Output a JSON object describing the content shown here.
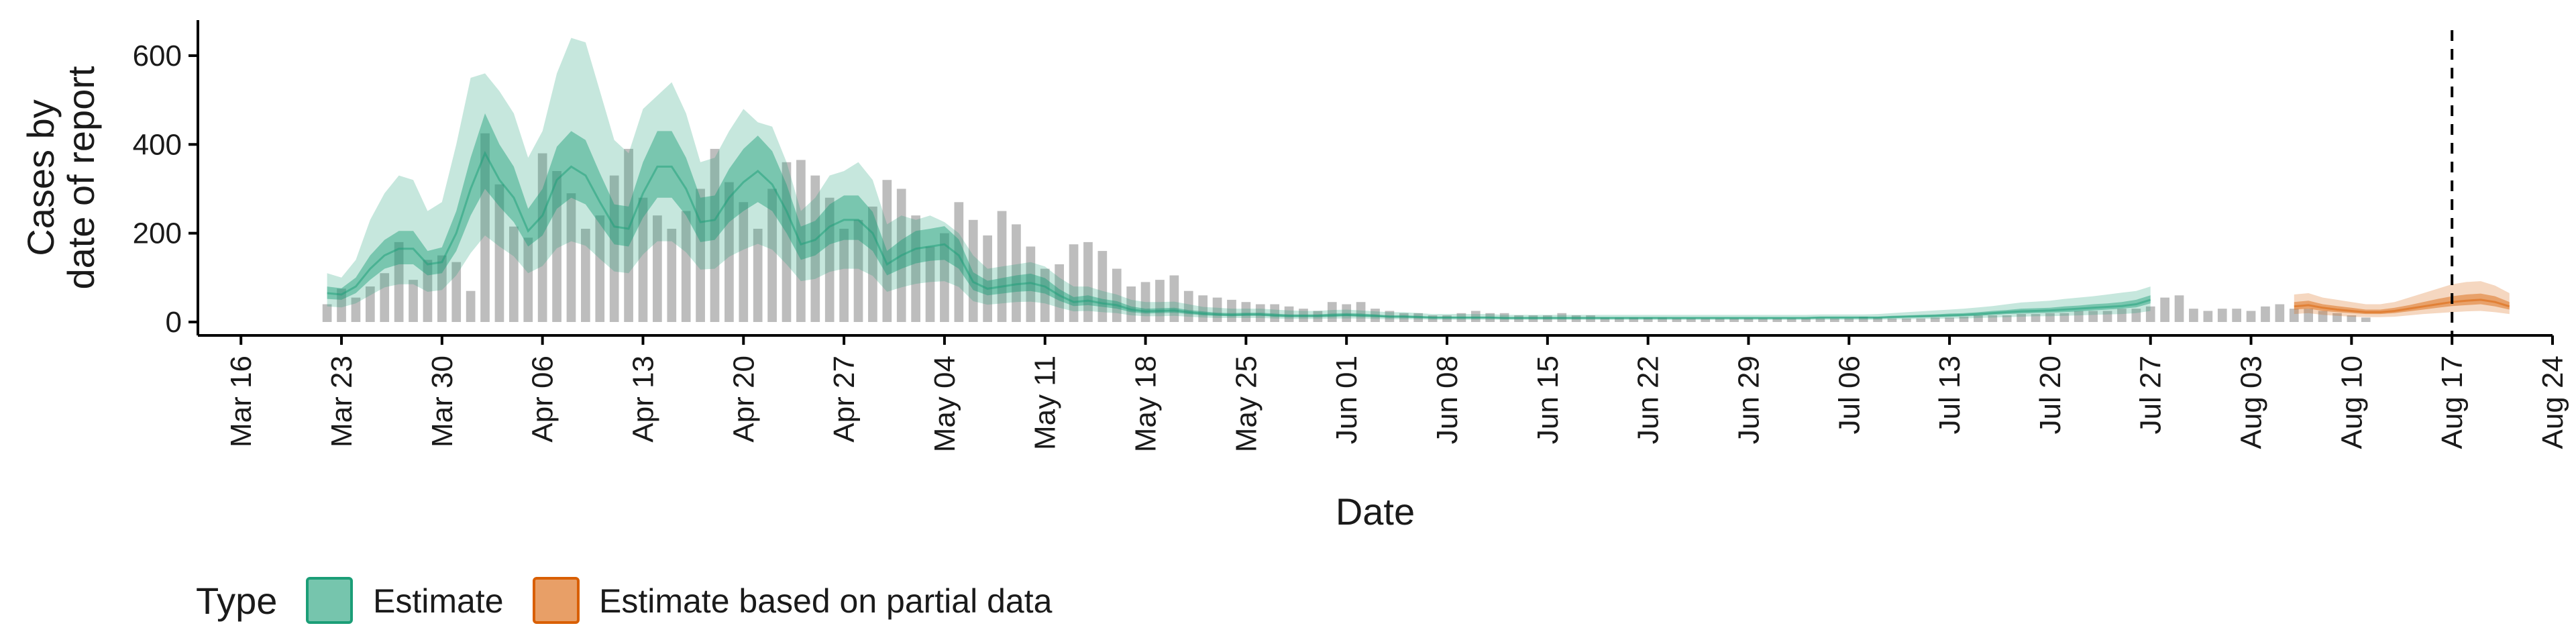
{
  "chart_data": {
    "type": "area",
    "xlabel": "Date",
    "ylabel_lines": [
      "Cases by",
      "date of report"
    ],
    "ylim": [
      0,
      680
    ],
    "yticks": [
      0,
      200,
      400,
      600
    ],
    "xlim": [
      "2020-03-13",
      "2020-08-24"
    ],
    "xticks": [
      "2020-03-16",
      "2020-03-23",
      "2020-03-30",
      "2020-04-06",
      "2020-04-13",
      "2020-04-20",
      "2020-04-27",
      "2020-05-04",
      "2020-05-11",
      "2020-05-18",
      "2020-05-25",
      "2020-06-01",
      "2020-06-08",
      "2020-06-15",
      "2020-06-22",
      "2020-06-29",
      "2020-07-06",
      "2020-07-13",
      "2020-07-20",
      "2020-07-27",
      "2020-08-03",
      "2020-08-10",
      "2020-08-17",
      "2020-08-24"
    ],
    "xtick_labels": [
      "Mar 16",
      "Mar 23",
      "Mar 30",
      "Apr 06",
      "Apr 13",
      "Apr 20",
      "Apr 27",
      "May 04",
      "May 11",
      "May 18",
      "May 25",
      "Jun 01",
      "Jun 08",
      "Jun 15",
      "Jun 22",
      "Jun 29",
      "Jul 06",
      "Jul 13",
      "Jul 20",
      "Jul 27",
      "Aug 03",
      "Aug 10",
      "Aug 17",
      "Aug 24"
    ],
    "vline_date": "2020-08-17",
    "grid": false,
    "legend": {
      "title": "Type",
      "position": "bottom-left",
      "items": [
        {
          "label": "Estimate",
          "color": "#1b9e77"
        },
        {
          "label": "Estimate based on partial data",
          "color": "#d95f02"
        }
      ]
    },
    "observed_start": "2020-03-22",
    "observed_cases": [
      40,
      75,
      55,
      80,
      110,
      180,
      95,
      140,
      150,
      135,
      70,
      425,
      310,
      215,
      190,
      380,
      340,
      290,
      210,
      240,
      330,
      390,
      280,
      240,
      210,
      250,
      300,
      390,
      315,
      270,
      210,
      300,
      360,
      365,
      330,
      280,
      210,
      230,
      260,
      320,
      300,
      240,
      170,
      200,
      270,
      230,
      195,
      250,
      220,
      170,
      120,
      130,
      175,
      180,
      160,
      120,
      80,
      90,
      95,
      105,
      70,
      60,
      55,
      50,
      45,
      40,
      40,
      35,
      30,
      25,
      45,
      40,
      45,
      30,
      25,
      20,
      20,
      15,
      15,
      20,
      25,
      20,
      20,
      15,
      15,
      15,
      20,
      15,
      15,
      10,
      10,
      10,
      10,
      10,
      8,
      8,
      8,
      8,
      8,
      8,
      8,
      8,
      8,
      8,
      8,
      8,
      8,
      12,
      10,
      8,
      8,
      8,
      10,
      10,
      12,
      15,
      15,
      15,
      18,
      18,
      20,
      20,
      25,
      25,
      25,
      30,
      30,
      35,
      55,
      60,
      30,
      25,
      30,
      30,
      25,
      35,
      40,
      30,
      30,
      25,
      20,
      15,
      10
    ],
    "estimate_start": "2020-03-22",
    "estimate": {
      "median": [
        65,
        62,
        80,
        120,
        150,
        165,
        165,
        130,
        135,
        200,
        300,
        380,
        320,
        280,
        205,
        240,
        320,
        350,
        330,
        270,
        215,
        210,
        290,
        350,
        350,
        300,
        225,
        230,
        280,
        315,
        340,
        310,
        250,
        175,
        185,
        215,
        230,
        230,
        200,
        130,
        150,
        165,
        170,
        175,
        150,
        90,
        75,
        80,
        85,
        88,
        80,
        60,
        45,
        48,
        42,
        38,
        28,
        24,
        25,
        26,
        22,
        19,
        17,
        16,
        17,
        17,
        15,
        14,
        14,
        14,
        15,
        16,
        15,
        14,
        12,
        12,
        11,
        10,
        10,
        10,
        10,
        10,
        9,
        9,
        9,
        9,
        9,
        9,
        9,
        9,
        9,
        9,
        9,
        9,
        9,
        9,
        9,
        9,
        9,
        9,
        9,
        9,
        9,
        9,
        10,
        10,
        10,
        10,
        10,
        11,
        12,
        13,
        14,
        15,
        16,
        18,
        20,
        22,
        24,
        25,
        26,
        28,
        30,
        32,
        34,
        36,
        40,
        50
      ],
      "lower50": [
        52,
        50,
        65,
        95,
        120,
        130,
        130,
        105,
        110,
        160,
        240,
        300,
        260,
        225,
        170,
        195,
        255,
        280,
        265,
        220,
        175,
        170,
        235,
        280,
        280,
        240,
        180,
        185,
        225,
        250,
        270,
        250,
        200,
        140,
        150,
        175,
        185,
        185,
        160,
        105,
        120,
        132,
        138,
        140,
        120,
        72,
        60,
        64,
        68,
        70,
        64,
        48,
        36,
        38,
        34,
        30,
        22,
        19,
        20,
        21,
        18,
        15,
        14,
        13,
        14,
        14,
        12,
        11,
        11,
        11,
        12,
        13,
        12,
        11,
        10,
        10,
        9,
        8,
        8,
        8,
        8,
        8,
        7,
        7,
        7,
        7,
        7,
        7,
        7,
        7,
        7,
        7,
        7,
        7,
        7,
        7,
        7,
        7,
        7,
        7,
        7,
        7,
        7,
        7,
        8,
        8,
        8,
        8,
        8,
        9,
        10,
        10,
        11,
        12,
        13,
        14,
        16,
        18,
        19,
        20,
        21,
        22,
        24,
        26,
        28,
        30,
        33,
        42
      ],
      "upper50": [
        80,
        76,
        100,
        150,
        185,
        205,
        205,
        160,
        168,
        250,
        370,
        470,
        400,
        350,
        255,
        300,
        395,
        430,
        410,
        335,
        265,
        260,
        360,
        430,
        430,
        370,
        280,
        285,
        345,
        390,
        420,
        385,
        310,
        215,
        228,
        265,
        285,
        285,
        248,
        160,
        185,
        205,
        210,
        216,
        186,
        112,
        93,
        99,
        105,
        109,
        99,
        74,
        56,
        60,
        52,
        47,
        35,
        30,
        31,
        32,
        27,
        24,
        21,
        20,
        21,
        21,
        19,
        17,
        17,
        17,
        19,
        20,
        19,
        17,
        15,
        15,
        14,
        12,
        12,
        12,
        12,
        12,
        11,
        11,
        11,
        11,
        11,
        11,
        11,
        11,
        11,
        11,
        11,
        11,
        11,
        11,
        11,
        11,
        11,
        11,
        11,
        11,
        11,
        11,
        12,
        12,
        12,
        12,
        12,
        14,
        15,
        16,
        17,
        19,
        20,
        22,
        25,
        27,
        30,
        31,
        32,
        35,
        37,
        40,
        42,
        45,
        50,
        60
      ],
      "lower90": [
        35,
        33,
        42,
        60,
        78,
        85,
        85,
        68,
        72,
        105,
        155,
        195,
        170,
        148,
        110,
        126,
        166,
        182,
        172,
        142,
        114,
        110,
        152,
        182,
        182,
        157,
        118,
        120,
        147,
        163,
        176,
        163,
        130,
        92,
        97,
        113,
        120,
        120,
        104,
        68,
        78,
        86,
        90,
        92,
        79,
        47,
        39,
        42,
        45,
        46,
        42,
        32,
        24,
        25,
        22,
        20,
        15,
        13,
        13,
        14,
        12,
        10,
        9,
        9,
        9,
        9,
        8,
        7,
        7,
        7,
        8,
        8,
        8,
        7,
        6,
        6,
        6,
        5,
        5,
        5,
        5,
        5,
        5,
        5,
        5,
        5,
        5,
        5,
        5,
        5,
        5,
        5,
        5,
        5,
        5,
        5,
        5,
        5,
        5,
        5,
        5,
        5,
        5,
        5,
        5,
        5,
        5,
        5,
        5,
        6,
        6,
        7,
        7,
        8,
        8,
        9,
        10,
        11,
        12,
        13,
        13,
        14,
        15,
        16,
        17,
        18,
        20,
        25
      ],
      "upper90": [
        110,
        100,
        140,
        230,
        290,
        330,
        320,
        250,
        270,
        400,
        550,
        560,
        520,
        470,
        370,
        430,
        560,
        640,
        630,
        520,
        410,
        380,
        480,
        510,
        540,
        470,
        360,
        370,
        430,
        480,
        450,
        440,
        360,
        250,
        280,
        330,
        340,
        360,
        320,
        220,
        240,
        230,
        240,
        225,
        200,
        150,
        120,
        125,
        130,
        135,
        125,
        100,
        80,
        80,
        70,
        62,
        50,
        45,
        45,
        46,
        40,
        34,
        32,
        30,
        30,
        30,
        28,
        26,
        25,
        25,
        27,
        28,
        26,
        24,
        22,
        22,
        20,
        18,
        18,
        18,
        18,
        18,
        16,
        16,
        16,
        16,
        16,
        16,
        16,
        16,
        16,
        16,
        16,
        16,
        16,
        16,
        16,
        16,
        16,
        16,
        16,
        16,
        16,
        16,
        17,
        17,
        17,
        17,
        18,
        20,
        22,
        24,
        26,
        28,
        30,
        33,
        36,
        40,
        44,
        46,
        48,
        52,
        55,
        58,
        62,
        66,
        70,
        80
      ]
    },
    "partial_start": "2020-08-06",
    "partial": {
      "median": [
        35,
        38,
        32,
        28,
        25,
        22,
        22,
        25,
        30,
        35,
        40,
        45,
        48,
        50,
        45,
        35
      ],
      "lower50": [
        28,
        30,
        25,
        22,
        20,
        18,
        18,
        20,
        24,
        28,
        32,
        36,
        38,
        40,
        35,
        28
      ],
      "upper50": [
        45,
        48,
        40,
        36,
        32,
        28,
        28,
        32,
        38,
        45,
        52,
        58,
        62,
        64,
        58,
        45
      ],
      "lower90": [
        18,
        20,
        16,
        14,
        12,
        11,
        11,
        12,
        15,
        18,
        20,
        22,
        24,
        25,
        22,
        18
      ],
      "upper90": [
        62,
        65,
        55,
        50,
        45,
        40,
        40,
        45,
        55,
        65,
        75,
        85,
        90,
        92,
        82,
        65
      ]
    },
    "colors": {
      "estimate": "#1b9e77",
      "partial": "#d95f02",
      "observed": "#bdbdbd"
    }
  }
}
